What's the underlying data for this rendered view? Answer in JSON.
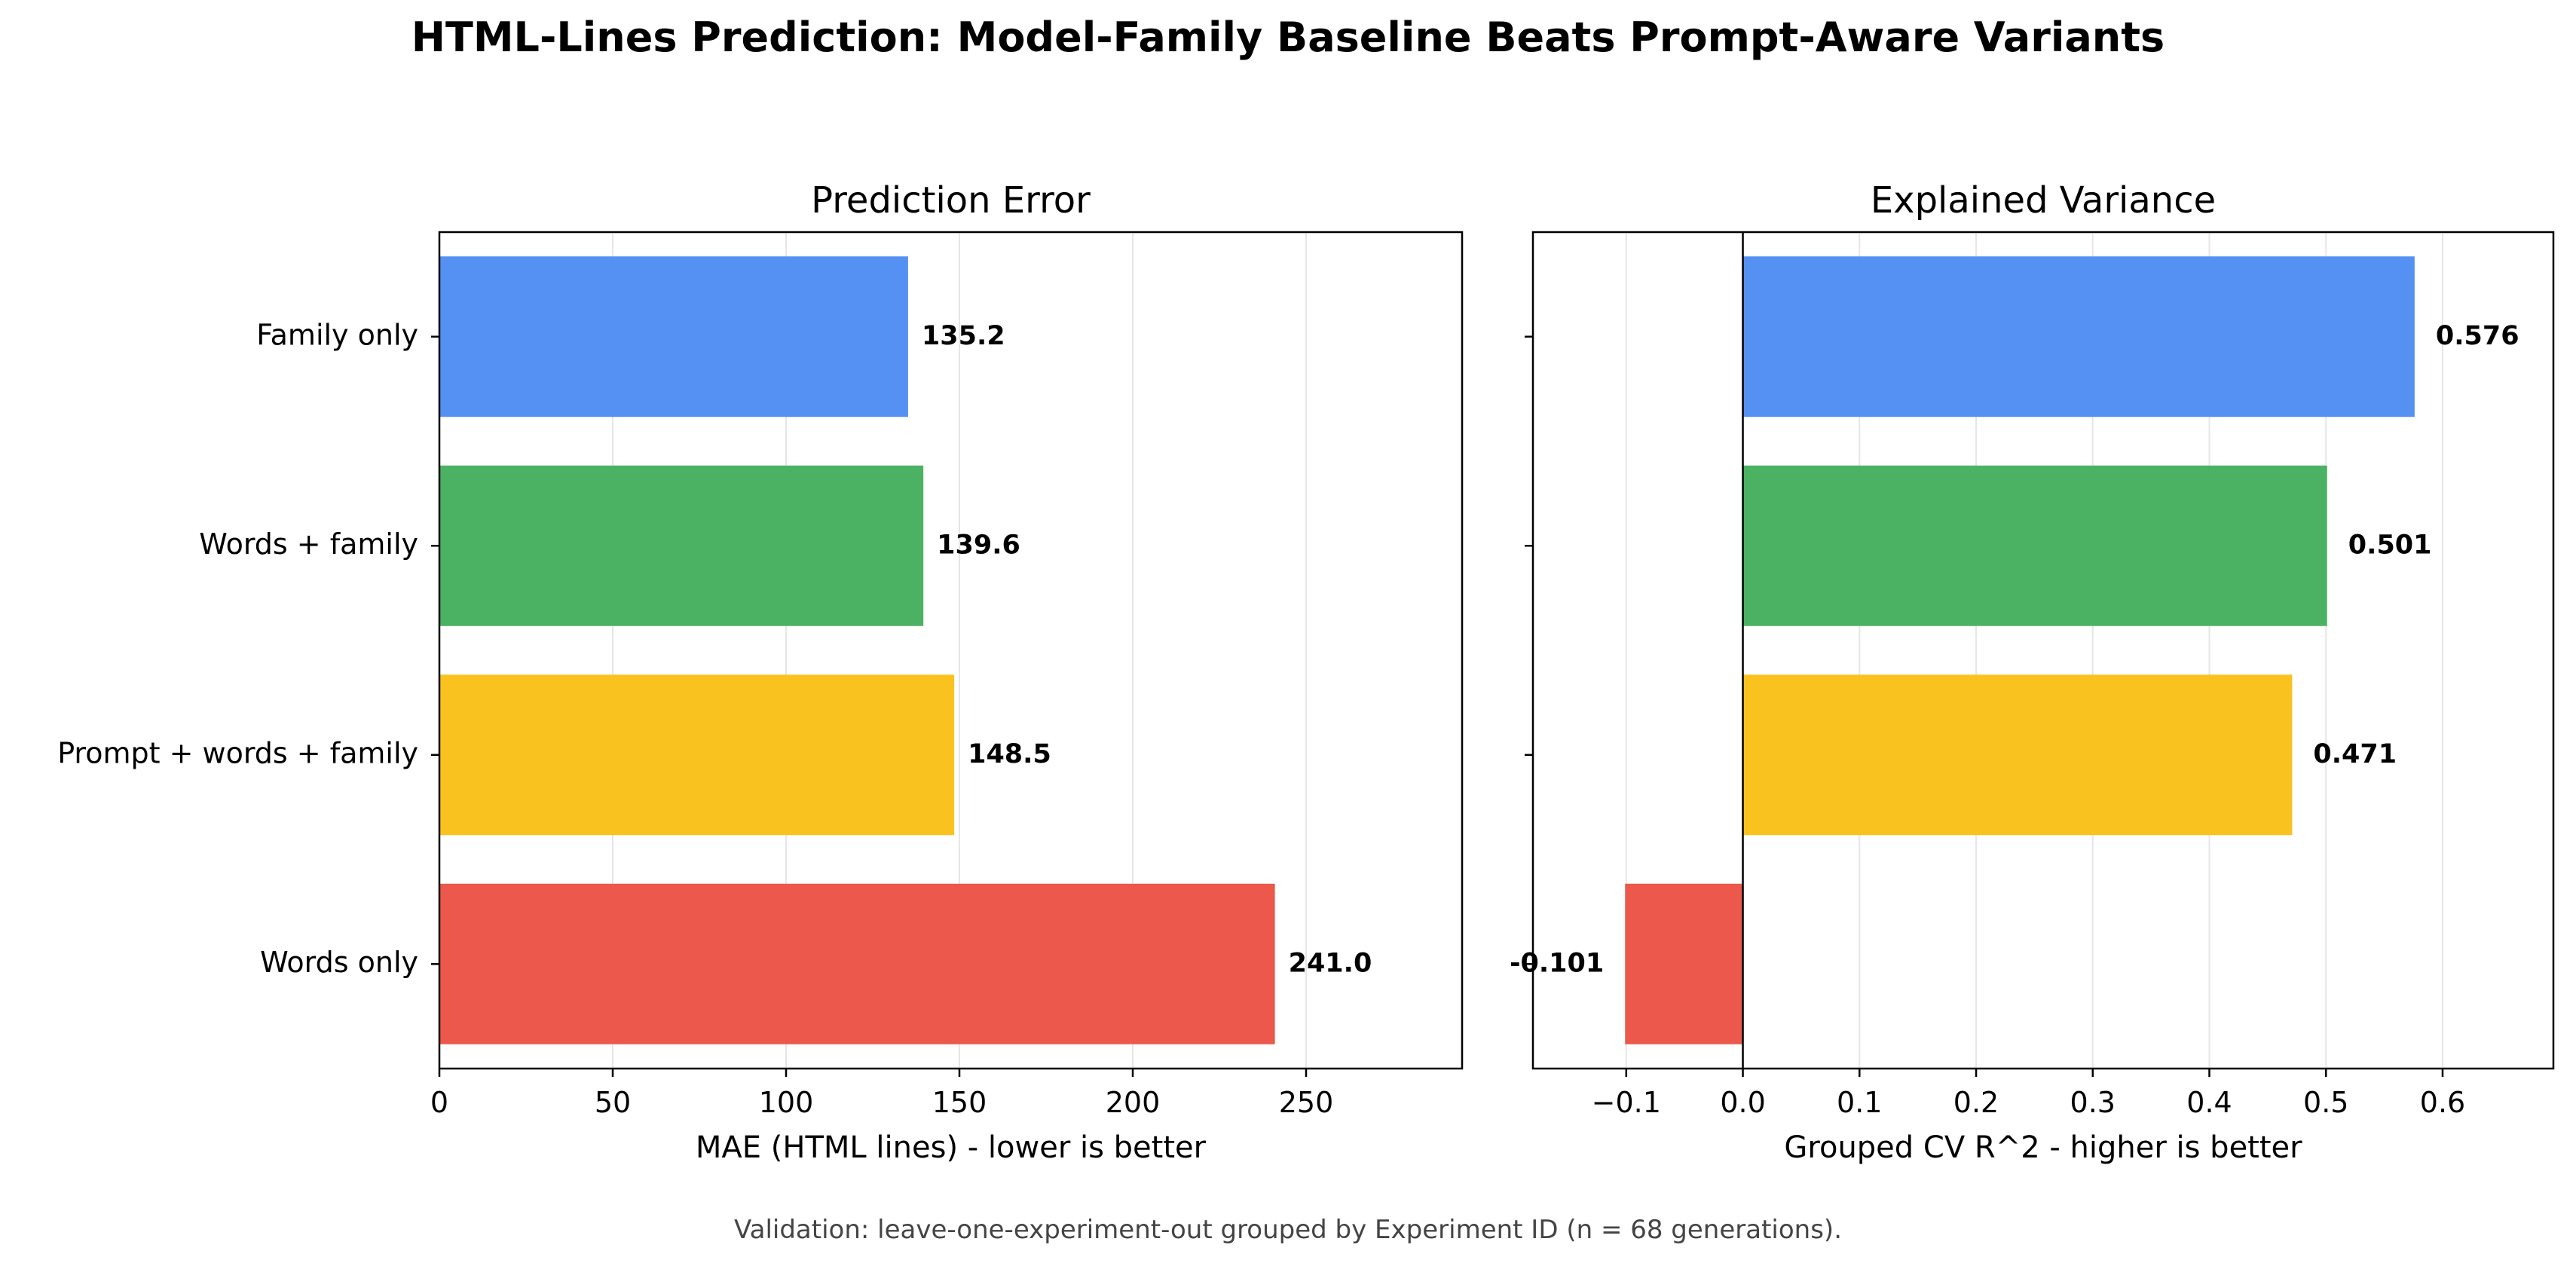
{
  "figure": {
    "title": "HTML-Lines Prediction: Model-Family Baseline Beats Prompt-Aware Variants",
    "footnote": "Validation: leave-one-experiment-out grouped by Experiment ID (n = 68 generations)."
  },
  "colors": {
    "Family only": "#5591f2",
    "Words + family": "#4bb264",
    "Prompt + words + family": "#f9c21f",
    "Words only": "#ec584b",
    "grid": "#e6e6e6",
    "axis": "#000000"
  },
  "chart_data": [
    {
      "type": "bar",
      "orientation": "horizontal",
      "title": "Prediction Error",
      "xlabel": "MAE (HTML lines) - lower is better",
      "ylabel": "",
      "categories": [
        "Family only",
        "Words + family",
        "Prompt + words + family",
        "Words only"
      ],
      "values": [
        135.2,
        139.6,
        148.5,
        241.0
      ],
      "value_labels": [
        "135.2",
        "139.6",
        "148.5",
        "241.0"
      ],
      "xlim": [
        0,
        295
      ],
      "xticks": [
        0,
        50,
        100,
        150,
        200,
        250
      ],
      "xtick_labels": [
        "0",
        "50",
        "100",
        "150",
        "200",
        "250"
      ],
      "grid": "vertical",
      "legend": "none"
    },
    {
      "type": "bar",
      "orientation": "horizontal",
      "title": "Explained Variance",
      "xlabel": "Grouped CV R^2 - higher is better",
      "ylabel": "",
      "categories": [
        "Family only",
        "Words + family",
        "Prompt + words + family",
        "Words only"
      ],
      "values": [
        0.576,
        0.501,
        0.471,
        -0.101
      ],
      "value_labels": [
        "0.576",
        "0.501",
        "0.471",
        "-0.101"
      ],
      "xlim": [
        -0.18,
        0.695
      ],
      "xticks": [
        -0.1,
        0.0,
        0.1,
        0.2,
        0.3,
        0.4,
        0.5,
        0.6
      ],
      "xtick_labels": [
        "−0.1",
        "0.0",
        "0.1",
        "0.2",
        "0.3",
        "0.4",
        "0.5",
        "0.6"
      ],
      "zero_line": true,
      "grid": "vertical",
      "legend": "none"
    }
  ]
}
